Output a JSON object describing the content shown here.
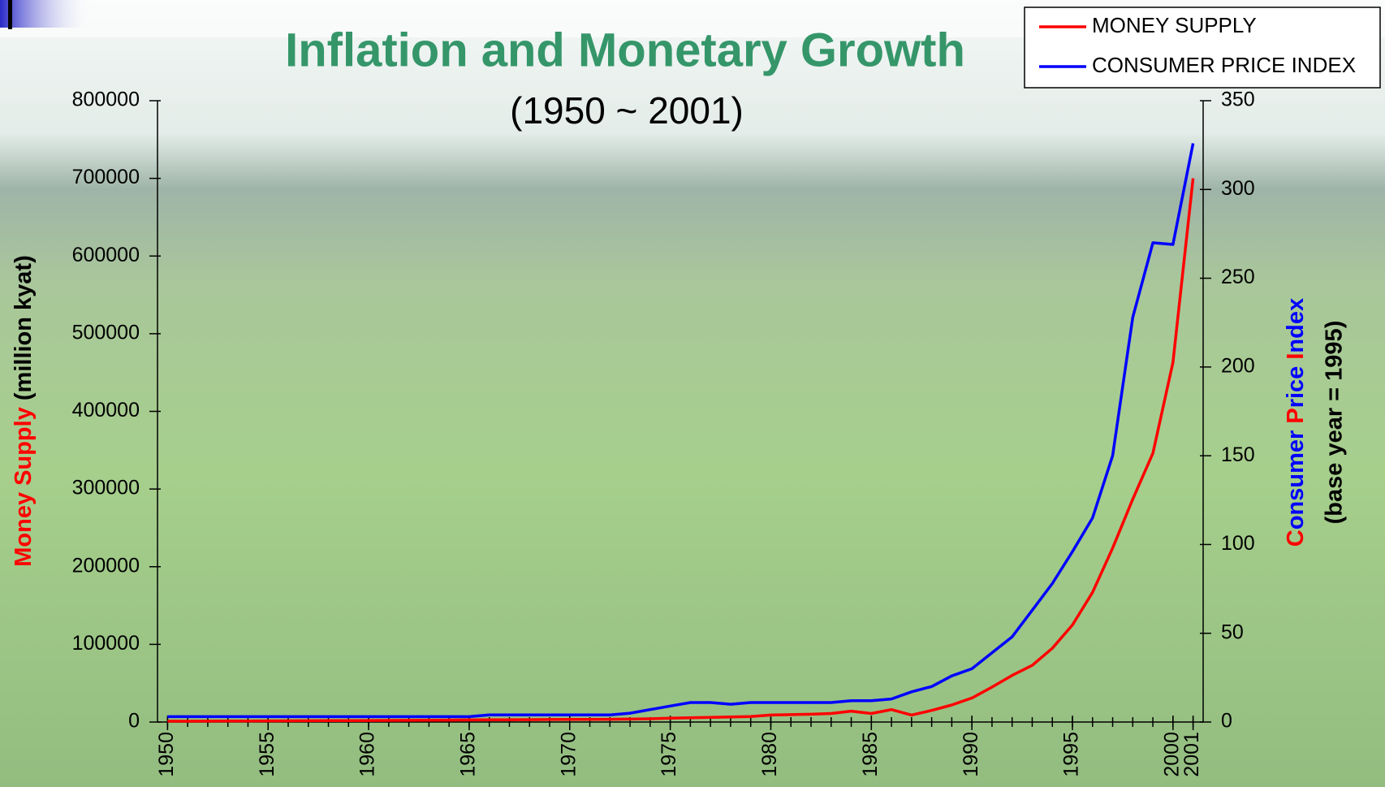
{
  "chart_data": {
    "type": "line",
    "title": "Inflation and Monetary Growth",
    "subtitle": "(1950 ~ 2001)",
    "ylabel_parts": [
      {
        "text": "Money Supply",
        "color": "#ff0000"
      },
      {
        "text": " (million kyat)",
        "color": "#000000"
      }
    ],
    "y2label_parts": [
      {
        "text": "C",
        "color": "#ff0000"
      },
      {
        "text": "onsumer ",
        "color": "#0000ff"
      },
      {
        "text": "P",
        "color": "#ff0000"
      },
      {
        "text": "rice ",
        "color": "#0000ff"
      },
      {
        "text": "I",
        "color": "#ff0000"
      },
      {
        "text": "ndex",
        "color": "#0000ff"
      }
    ],
    "y2sublabel": "(base year = 1995)",
    "x": [
      1950,
      1951,
      1952,
      1953,
      1954,
      1955,
      1956,
      1957,
      1958,
      1959,
      1960,
      1961,
      1962,
      1963,
      1964,
      1965,
      1966,
      1967,
      1968,
      1969,
      1970,
      1971,
      1972,
      1973,
      1974,
      1975,
      1976,
      1977,
      1978,
      1979,
      1980,
      1981,
      1982,
      1983,
      1984,
      1985,
      1986,
      1987,
      1988,
      1989,
      1990,
      1991,
      1992,
      1993,
      1994,
      1995,
      1996,
      1997,
      1998,
      1999,
      2000,
      2001
    ],
    "xlim": [
      1949.5,
      2001.5
    ],
    "xticks": [
      1950,
      1955,
      1960,
      1965,
      1970,
      1975,
      1980,
      1985,
      1990,
      1995,
      2000,
      2001
    ],
    "ylim": [
      0,
      800000
    ],
    "yticks": [
      0,
      100000,
      200000,
      300000,
      400000,
      500000,
      600000,
      700000,
      800000
    ],
    "y2lim": [
      0,
      350
    ],
    "y2ticks": [
      0,
      50,
      100,
      150,
      200,
      250,
      300,
      350
    ],
    "legend": "top-right",
    "series": [
      {
        "name": "MONEY SUPPLY",
        "color": "#ff0000",
        "values": [
          1000,
          1000,
          1200,
          1300,
          1400,
          1500,
          1600,
          1700,
          1800,
          1900,
          2000,
          2100,
          2200,
          2300,
          2500,
          2700,
          2800,
          2900,
          3000,
          3200,
          3400,
          3500,
          3600,
          3800,
          4200,
          5000,
          5500,
          6000,
          6500,
          7000,
          9000,
          9500,
          10000,
          11000,
          14000,
          11000,
          16000,
          9000,
          15000,
          22000,
          31000,
          45000,
          60000,
          73000,
          95000,
          125000,
          167000,
          224000,
          287000,
          346000,
          463000,
          700000
        ]
      },
      {
        "name": "CONSUMER PRICE INDEX",
        "color": "#0000ff",
        "axis": "y2",
        "values": [
          3,
          3,
          3,
          3,
          3,
          3,
          3,
          3,
          3,
          3,
          3,
          3,
          3,
          3,
          3,
          3,
          4,
          4,
          4,
          4,
          4,
          4,
          4,
          5,
          7,
          9,
          11,
          11,
          10,
          11,
          11,
          11,
          11,
          11,
          12,
          12,
          13,
          17,
          20,
          26,
          30,
          39,
          48,
          63,
          78,
          96,
          115,
          150,
          228,
          270,
          269,
          326
        ]
      }
    ]
  }
}
